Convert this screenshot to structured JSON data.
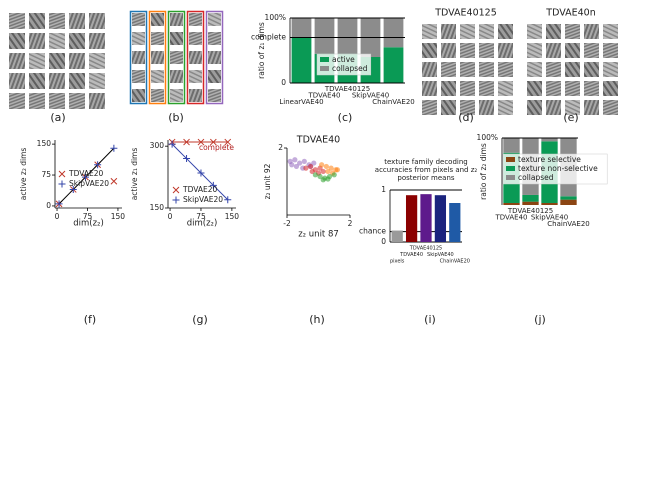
{
  "captions": [
    "(a)",
    "(b)",
    "(c)",
    "(d)",
    "(e)",
    "(f)",
    "(g)",
    "(h)",
    "(i)",
    "(j)"
  ],
  "image_panels": [
    {
      "title": "TDVAE40125"
    },
    {
      "title": "TDVAE40n"
    }
  ],
  "chart_data": [
    {
      "type": "stacked_bar",
      "ylabel": "ratio of z₁ dims",
      "categories": [
        "LinearVAE40",
        "TDVAE40",
        "TDVAE40125",
        "SkipVAE40",
        "ChainVAE20"
      ],
      "series": [
        {
          "name": "active",
          "color": "#0a9a55",
          "values": [
            70,
            45,
            45,
            40,
            55
          ]
        },
        {
          "name": "collapsed",
          "color": "#8c8c8c",
          "values": [
            30,
            55,
            55,
            60,
            45
          ]
        }
      ],
      "ylim": [
        0,
        100
      ],
      "yticks": [
        0,
        {
          "value": 70,
          "label": "complete"
        },
        {
          "value": 100,
          "label": "100%"
        }
      ]
    },
    {
      "type": "scatter",
      "xlabel": "dim(z₂)",
      "ylabel": "active z₂ dims",
      "xlim": [
        -5,
        160
      ],
      "ylim": [
        -5,
        160
      ],
      "xticks": [
        0,
        75,
        150
      ],
      "yticks": [
        0,
        75,
        150
      ],
      "series": [
        {
          "name": "TDVAE20",
          "color": "#c0392b",
          "marker": "x",
          "x": [
            5,
            40,
            70,
            100,
            140
          ],
          "values": [
            5,
            40,
            70,
            100,
            60
          ]
        },
        {
          "name": "SkipVAE20",
          "color": "#3344aa",
          "marker": "+",
          "line_color": "#000000",
          "x": [
            5,
            40,
            70,
            100,
            140
          ],
          "values": [
            5,
            40,
            70,
            100,
            140
          ]
        }
      ]
    },
    {
      "type": "scatter",
      "xlabel": "dim(z₂)",
      "ylabel": "active z₁ dims",
      "annotation": "complete",
      "xlim": [
        -5,
        160
      ],
      "ylim": [
        150,
        315
      ],
      "xticks": [
        0,
        75,
        150
      ],
      "yticks": [
        150,
        300
      ],
      "series": [
        {
          "name": "TDVAE20",
          "color": "#c0392b",
          "marker": "x",
          "line_color": "#c0392b",
          "x": [
            5,
            40,
            75,
            105,
            140
          ],
          "values": [
            310,
            310,
            310,
            310,
            310
          ]
        },
        {
          "name": "SkipVAE20",
          "color": "#3344aa",
          "marker": "+",
          "line_color": "#3344aa",
          "x": [
            5,
            40,
            75,
            105,
            140
          ],
          "values": [
            305,
            270,
            235,
            205,
            170
          ]
        }
      ]
    },
    {
      "type": "scatter",
      "title": "TDVAE40",
      "xlabel": "z₂ unit 87",
      "ylabel": "z₂ unit 92",
      "xlim": [
        -2,
        2
      ],
      "ylim": [
        -2,
        2
      ],
      "xticks": [
        -2,
        2
      ],
      "yticks": [
        2
      ],
      "series": [
        {
          "color": "#9467bd",
          "marker": "dot",
          "x": [
            -1.8,
            -1.5,
            -1.2,
            -0.9,
            -0.6,
            -0.3,
            -1.4,
            -1.0,
            -0.5,
            -1.7
          ],
          "values": [
            1.2,
            1.3,
            1.1,
            1.2,
            1.0,
            1.1,
            0.9,
            0.8,
            0.9,
            1.0
          ]
        },
        {
          "color": "#d62728",
          "marker": "dot",
          "x": [
            -0.8,
            -0.5,
            -0.2,
            0.1,
            0.3,
            -0.4,
            0.0
          ],
          "values": [
            0.8,
            0.9,
            0.7,
            0.8,
            0.6,
            0.6,
            0.5
          ]
        },
        {
          "color": "#ff7f0e",
          "marker": "dot",
          "x": [
            0.2,
            0.5,
            0.8,
            1.1,
            0.6,
            0.9,
            1.2
          ],
          "values": [
            1.0,
            0.9,
            0.8,
            0.7,
            0.6,
            0.5,
            0.7
          ]
        },
        {
          "color": "#2ca02c",
          "marker": "dot",
          "x": [
            -0.2,
            0.1,
            0.4,
            0.7,
            1.0,
            0.3,
            0.6
          ],
          "values": [
            0.4,
            0.3,
            0.2,
            0.3,
            0.4,
            0.1,
            0.15
          ]
        }
      ]
    },
    {
      "type": "bar",
      "title": "texture family decoding accuracies from pixels and z₂ posterior means",
      "categories": [
        "pixels",
        "TDVAE40",
        "TDVAE40125",
        "SkipVAE40",
        "ChainVAE20"
      ],
      "values": [
        0.22,
        0.9,
        0.92,
        0.9,
        0.75
      ],
      "colors": [
        "#9a9a9a",
        "#8b0000",
        "#5e1a8c",
        "#1a237e",
        "#1f5aa6"
      ],
      "ylim": [
        0,
        1
      ],
      "yticks": [
        0,
        {
          "value": 0.2,
          "label": "chance"
        },
        1
      ]
    },
    {
      "type": "stacked_bar",
      "ylabel": "ratio of z₂ dims",
      "categories": [
        "TDVAE40",
        "TDVAE40125",
        "SkipVAE40",
        "ChainVAE20"
      ],
      "series": [
        {
          "name": "texture selective",
          "color": "#8b4513",
          "values": [
            3,
            5,
            3,
            8
          ]
        },
        {
          "name": "texture non-selective",
          "color": "#0a9a55",
          "values": [
            75,
            10,
            92,
            5
          ]
        },
        {
          "name": "collapsed",
          "color": "#8c8c8c",
          "values": [
            22,
            85,
            5,
            87
          ]
        }
      ],
      "ylim": [
        0,
        100
      ],
      "yticks": [
        {
          "value": 100,
          "label": "100%"
        }
      ]
    }
  ]
}
